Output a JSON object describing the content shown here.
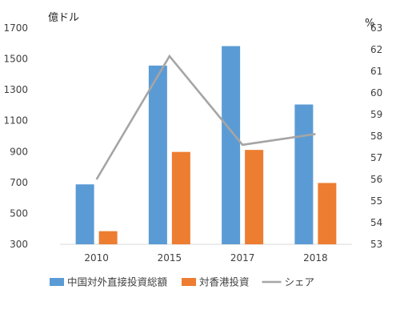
{
  "chart_data": {
    "type": "bar",
    "categories": [
      "2010",
      "2015",
      "2017",
      "2018"
    ],
    "series": [
      {
        "name": "中国対外直接投資総額",
        "type": "bar",
        "axis": "left",
        "color": "#5B9BD5",
        "values": [
          688,
          1457,
          1583,
          1205
        ]
      },
      {
        "name": "対香港投資",
        "type": "bar",
        "axis": "left",
        "color": "#ED7D31",
        "values": [
          385,
          898,
          911,
          697
        ]
      },
      {
        "name": "シェア",
        "type": "line",
        "axis": "right",
        "color": "#A5A5A5",
        "values": [
          56.0,
          61.7,
          57.6,
          58.1
        ]
      }
    ],
    "ylabel": "億ドル",
    "y2label": "%",
    "ylim": [
      300,
      1700
    ],
    "y2lim": [
      53,
      63
    ],
    "yticks": [
      300,
      500,
      700,
      900,
      1100,
      1300,
      1500,
      1700
    ],
    "y2ticks": [
      53,
      54,
      55,
      56,
      57,
      58,
      59,
      60,
      61,
      62,
      63
    ],
    "grid": false,
    "legend": "bottom"
  }
}
